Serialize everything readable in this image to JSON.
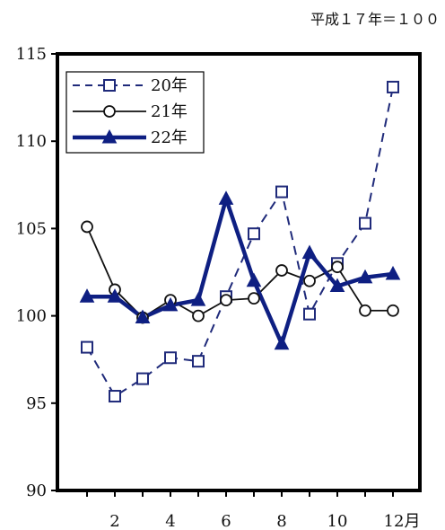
{
  "chart_data": {
    "type": "line",
    "note": "平成１７年＝１００",
    "x": [
      1,
      2,
      3,
      4,
      5,
      6,
      7,
      8,
      9,
      10,
      11,
      12
    ],
    "x_tick_labels": [
      "2",
      "4",
      "6",
      "8",
      "10",
      "12月"
    ],
    "y_tick_labels": [
      "115",
      "110",
      "105",
      "100",
      "95",
      "90"
    ],
    "ylim": [
      90,
      115
    ],
    "grid": false,
    "legend_position": "top-left",
    "series": [
      {
        "name": "20年",
        "color": "#1f2a7a",
        "line_style": "dashed",
        "marker": "open-square",
        "values": [
          98.2,
          95.4,
          96.4,
          97.6,
          97.4,
          101.1,
          104.7,
          107.1,
          100.1,
          103.0,
          105.3,
          113.1
        ]
      },
      {
        "name": "21年",
        "color": "#111111",
        "line_style": "solid-thin",
        "marker": "open-circle",
        "values": [
          105.1,
          101.5,
          99.9,
          100.9,
          100.0,
          100.9,
          101.0,
          102.6,
          102.0,
          102.8,
          100.3,
          100.3
        ]
      },
      {
        "name": "22年",
        "color": "#0e1f82",
        "line_style": "solid-thick",
        "marker": "filled-triangle",
        "values": [
          101.1,
          101.1,
          99.9,
          100.6,
          100.9,
          106.7,
          102.0,
          98.4,
          103.6,
          101.7,
          102.2,
          102.4
        ]
      }
    ]
  }
}
